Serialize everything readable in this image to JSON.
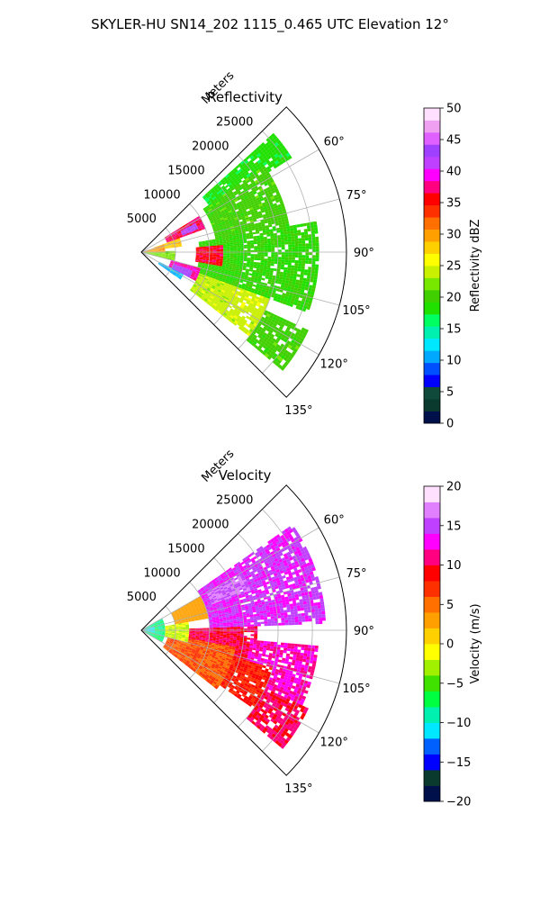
{
  "figure": {
    "title": "SKYLER-HU  SN14_202  1115_0.465 UTC Elevation 12°"
  },
  "chart_data": [
    {
      "type": "heatmap",
      "title": "Reflectivity",
      "projection": "polar-sector",
      "azimuth_range_deg": [
        45,
        135
      ],
      "azimuth_ticks_deg": [
        60,
        75,
        90,
        105,
        120,
        135
      ],
      "azimuth_tick_labels": [
        "60°",
        "75°",
        "90°",
        "105°",
        "120°",
        "135°"
      ],
      "range_label": "Meters",
      "range_max_m": 30000,
      "range_ticks_m": [
        5000,
        10000,
        15000,
        20000,
        25000
      ],
      "range_tick_labels": [
        "5000",
        "10000",
        "15000",
        "20000",
        "25000"
      ],
      "grid": true,
      "colorbar": {
        "label": "Reflectivity dBZ",
        "min": 0,
        "max": 50,
        "ticks": [
          0,
          5,
          10,
          15,
          20,
          25,
          30,
          35,
          40,
          45,
          50
        ],
        "tick_labels": [
          "0",
          "5",
          "10",
          "15",
          "20",
          "25",
          "30",
          "35",
          "40",
          "45",
          "50"
        ],
        "placement": "right",
        "colors": [
          "#00104a",
          "#0a3a2e",
          "#0f4a3a",
          "#0000ff",
          "#0050ff",
          "#00a8ff",
          "#00e8ff",
          "#00f0b0",
          "#00ff60",
          "#20e000",
          "#40d000",
          "#78e800",
          "#c8f000",
          "#ffff00",
          "#ffd000",
          "#ffa000",
          "#ff7000",
          "#ff3000",
          "#ff0000",
          "#ff0080",
          "#ff00ff",
          "#c040ff",
          "#a040ff",
          "#e060ff",
          "#f0a0f0",
          "#ffe0ff"
        ]
      },
      "field_regions": [
        {
          "az": [
            48,
            58
          ],
          "r": [
            12000,
            26000
          ],
          "value": 18
        },
        {
          "az": [
            55,
            80
          ],
          "r": [
            11000,
            22000
          ],
          "value": 20
        },
        {
          "az": [
            58,
            70
          ],
          "r": [
            4000,
            10000
          ],
          "value": 37
        },
        {
          "az": [
            62,
            68
          ],
          "r": [
            6500,
            9000
          ],
          "value": 42
        },
        {
          "az": [
            70,
            82
          ],
          "r": [
            2000,
            6000
          ],
          "value": 28
        },
        {
          "az": [
            80,
            110
          ],
          "r": [
            8500,
            26000
          ],
          "value": 19
        },
        {
          "az": [
            85,
            100
          ],
          "r": [
            8000,
            12000
          ],
          "value": 36
        },
        {
          "az": [
            105,
            118
          ],
          "r": [
            4500,
            9000
          ],
          "value": 38
        },
        {
          "az": [
            110,
            118
          ],
          "r": [
            5000,
            8000
          ],
          "value": 43
        },
        {
          "az": [
            118,
            125
          ],
          "r": [
            3000,
            7000
          ],
          "value": 11
        },
        {
          "az": [
            110,
            128
          ],
          "r": [
            9000,
            20000
          ],
          "value": 24
        },
        {
          "az": [
            115,
            130
          ],
          "r": [
            20000,
            27000
          ],
          "value": 20
        },
        {
          "az": [
            88,
            105
          ],
          "r": [
            0,
            5000
          ],
          "value": 22
        },
        {
          "az": [
            72,
            90
          ],
          "r": [
            0,
            3500
          ],
          "value": 30
        }
      ]
    },
    {
      "type": "heatmap",
      "title": "Velocity",
      "projection": "polar-sector",
      "azimuth_range_deg": [
        45,
        135
      ],
      "azimuth_ticks_deg": [
        60,
        75,
        90,
        105,
        120,
        135
      ],
      "azimuth_tick_labels": [
        "60°",
        "75°",
        "90°",
        "105°",
        "120°",
        "135°"
      ],
      "range_label": "Meters",
      "range_max_m": 30000,
      "range_ticks_m": [
        5000,
        10000,
        15000,
        20000,
        25000
      ],
      "range_tick_labels": [
        "5000",
        "10000",
        "15000",
        "20000",
        "25000"
      ],
      "grid": true,
      "colorbar": {
        "label": "Velocity (m/s)",
        "min": -20,
        "max": 20,
        "ticks": [
          -20,
          -15,
          -10,
          -5,
          0,
          5,
          10,
          15,
          20
        ],
        "tick_labels": [
          "−20",
          "−15",
          "−10",
          "−5",
          "0",
          "5",
          "10",
          "15",
          "20"
        ],
        "placement": "right",
        "colors": [
          "#00104a",
          "#0a3a2e",
          "#0000ff",
          "#0060ff",
          "#00e8ff",
          "#00f0b0",
          "#00ff40",
          "#40e000",
          "#a0f000",
          "#ffff00",
          "#ffd000",
          "#ffa000",
          "#ff7000",
          "#ff3000",
          "#ff0000",
          "#ff0080",
          "#ff00ff",
          "#c040ff",
          "#e080ff",
          "#ffe0ff"
        ]
      },
      "field_regions": [
        {
          "az": [
            55,
            88
          ],
          "r": [
            10000,
            27000
          ],
          "value": 14
        },
        {
          "az": [
            60,
            70
          ],
          "r": [
            11000,
            17000
          ],
          "value": 16
        },
        {
          "az": [
            88,
            112
          ],
          "r": [
            7000,
            17000
          ],
          "value": 10
        },
        {
          "az": [
            95,
            115
          ],
          "r": [
            16000,
            26000
          ],
          "value": 12
        },
        {
          "az": [
            100,
            128
          ],
          "r": [
            4000,
            14000
          ],
          "value": 6
        },
        {
          "az": [
            106,
            125
          ],
          "r": [
            14000,
            20000
          ],
          "value": 8
        },
        {
          "az": [
            115,
            130
          ],
          "r": [
            20000,
            27000
          ],
          "value": 10
        },
        {
          "az": [
            60,
            80
          ],
          "r": [
            5000,
            10000
          ],
          "value": 3
        },
        {
          "az": [
            80,
            105
          ],
          "r": [
            3000,
            7000
          ],
          "value": -2
        },
        {
          "az": [
            60,
            120
          ],
          "r": [
            0,
            3500
          ],
          "value": -8
        },
        {
          "az": [
            72,
            100
          ],
          "r": [
            0,
            2000
          ],
          "value": -11
        }
      ]
    }
  ]
}
